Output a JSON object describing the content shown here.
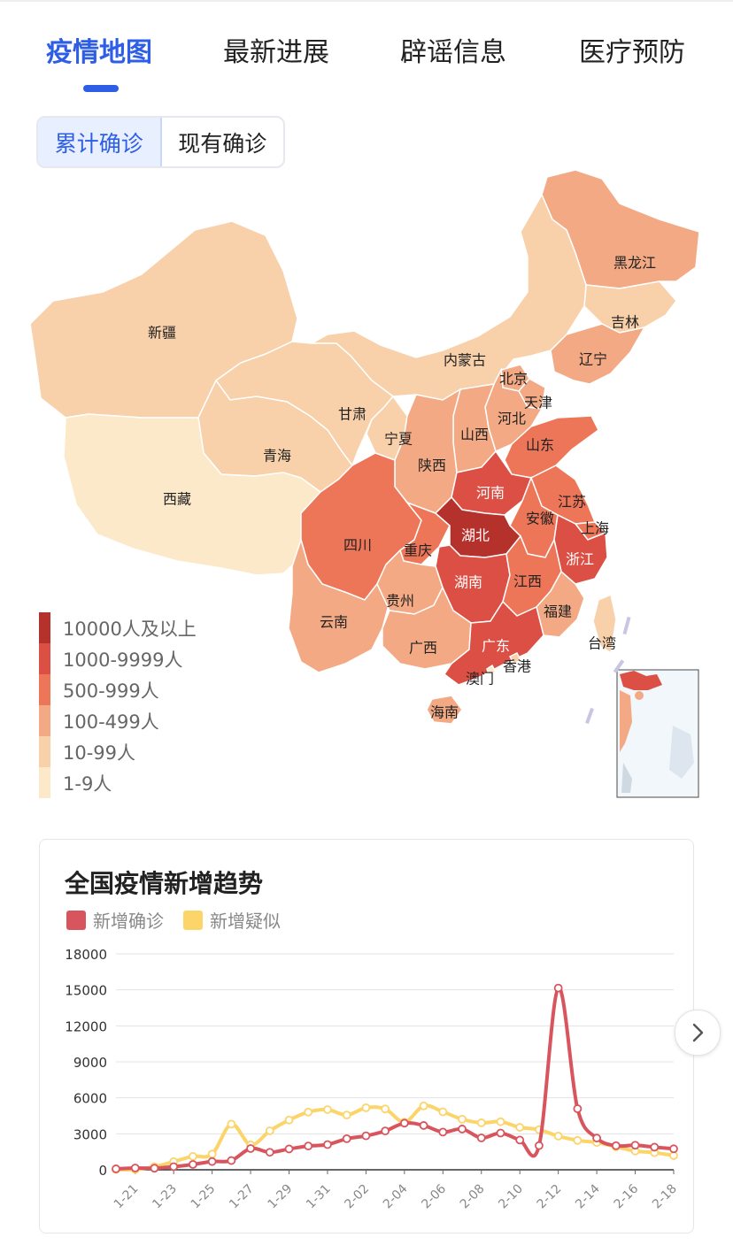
{
  "tabs": [
    "疫情地图",
    "最新进展",
    "辟谣信息",
    "医疗预防"
  ],
  "segment": {
    "cumulative": "累计确诊",
    "current": "现有确诊"
  },
  "map": {
    "provinces": [
      {
        "name": "黑龙江",
        "level": 3
      },
      {
        "name": "吉林",
        "level": 2
      },
      {
        "name": "辽宁",
        "level": 3
      },
      {
        "name": "内蒙古",
        "level": 2
      },
      {
        "name": "北京",
        "level": 3
      },
      {
        "name": "天津",
        "level": 3
      },
      {
        "name": "河北",
        "level": 3
      },
      {
        "name": "山西",
        "level": 3
      },
      {
        "name": "山东",
        "level": 4
      },
      {
        "name": "新疆",
        "level": 2
      },
      {
        "name": "甘肃",
        "level": 2
      },
      {
        "name": "宁夏",
        "level": 2
      },
      {
        "name": "青海",
        "level": 2
      },
      {
        "name": "陕西",
        "level": 3
      },
      {
        "name": "河南",
        "level": 5
      },
      {
        "name": "江苏",
        "level": 4
      },
      {
        "name": "安徽",
        "level": 4
      },
      {
        "name": "上海",
        "level": 4
      },
      {
        "name": "西藏",
        "level": 1
      },
      {
        "name": "四川",
        "level": 4
      },
      {
        "name": "重庆",
        "level": 4
      },
      {
        "name": "湖北",
        "level": 6
      },
      {
        "name": "浙江",
        "level": 5
      },
      {
        "name": "湖南",
        "level": 5
      },
      {
        "name": "江西",
        "level": 4
      },
      {
        "name": "云南",
        "level": 3
      },
      {
        "name": "贵州",
        "level": 3
      },
      {
        "name": "福建",
        "level": 3
      },
      {
        "name": "台湾",
        "level": 2
      },
      {
        "name": "广西",
        "level": 3
      },
      {
        "name": "广东",
        "level": 5
      },
      {
        "name": "香港",
        "level": 2
      },
      {
        "name": "澳门",
        "level": 1
      },
      {
        "name": "海南",
        "level": 3
      }
    ],
    "legend": [
      {
        "label": "10000人及以上",
        "color": "#b5312b"
      },
      {
        "label": "1000-9999人",
        "color": "#db4f44"
      },
      {
        "label": "500-999人",
        "color": "#ec7657"
      },
      {
        "label": "100-499人",
        "color": "#f3a983"
      },
      {
        "label": "10-99人",
        "color": "#f8d0aa"
      },
      {
        "label": "1-9人",
        "color": "#fce9c9"
      }
    ]
  },
  "trend": {
    "title": "全国疫情新增趋势",
    "series_colors": {
      "confirmed": "#d9555e",
      "suspected": "#fbd46a"
    }
  },
  "chart_data": {
    "type": "line",
    "title": "全国疫情新增趋势",
    "legend_position": "top-left",
    "grid": true,
    "ylim": [
      0,
      18000
    ],
    "yticks": [
      0,
      3000,
      6000,
      9000,
      12000,
      15000,
      18000
    ],
    "x": [
      "1-20",
      "1-21",
      "1-22",
      "1-23",
      "1-24",
      "1-25",
      "1-26",
      "1-27",
      "1-28",
      "1-29",
      "1-30",
      "1-31",
      "2-01",
      "2-02",
      "2-03",
      "2-04",
      "2-05",
      "2-06",
      "2-07",
      "2-08",
      "2-09",
      "2-10",
      "2-11",
      "2-12",
      "2-13",
      "2-14",
      "2-15",
      "2-16",
      "2-17",
      "2-18"
    ],
    "xtick_labels": [
      "1-21",
      "1-23",
      "1-25",
      "1-27",
      "1-29",
      "1-31",
      "2-02",
      "2-04",
      "2-06",
      "2-08",
      "2-10",
      "2-12",
      "2-14",
      "2-16",
      "2-18"
    ],
    "series": [
      {
        "name": "新增确诊",
        "values": [
          77,
          149,
          131,
          259,
          444,
          688,
          769,
          1771,
          1459,
          1737,
          1982,
          2102,
          2590,
          2829,
          3235,
          3887,
          3694,
          3143,
          3399,
          2656,
          3062,
          2478,
          2015,
          15152,
          5090,
          2641,
          2009,
          2048,
          1886,
          1749
        ]
      },
      {
        "name": "新增疑似",
        "values": [
          27,
          26,
          257,
          680,
          1118,
          1309,
          3806,
          2077,
          3248,
          4148,
          4812,
          5019,
          4562,
          5173,
          5072,
          3971,
          5328,
          4833,
          4214,
          3916,
          4008,
          3536,
          3342,
          2807,
          2450,
          2277,
          1918,
          1563,
          1432,
          1185
        ]
      }
    ]
  }
}
